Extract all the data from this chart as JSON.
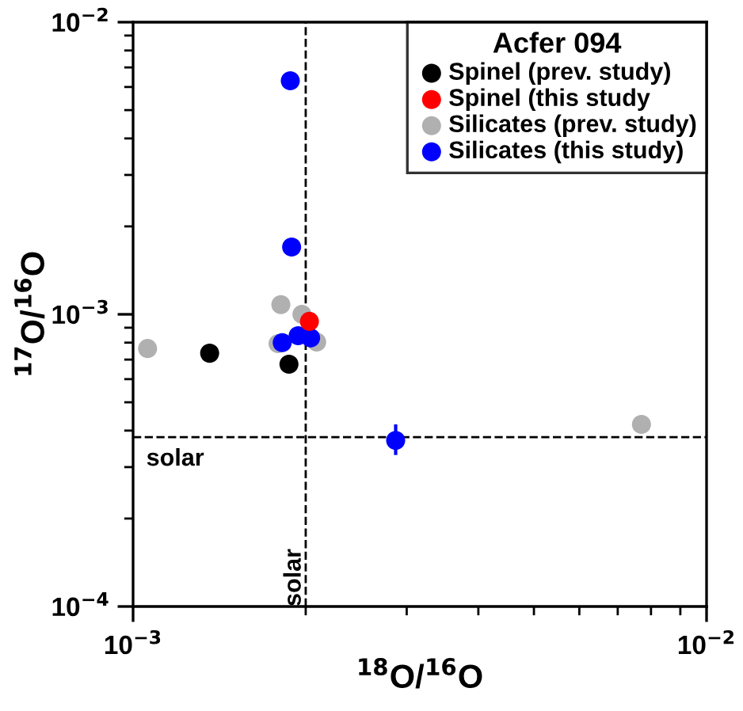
{
  "chart_data": {
    "type": "scatter",
    "xlabel": "$^{18}$O/$^{16}$O",
    "ylabel": "$^{17}$O/$^{16}$O",
    "legend_title": "Acfer 094",
    "log": "xy",
    "xlim": [
      0.001,
      0.01
    ],
    "ylim": [
      0.0001,
      0.01
    ],
    "xticks": [
      {
        "value": 0.001,
        "label": "10$^{−3}$"
      },
      {
        "value": 0.01,
        "label": "10$^{−2}$"
      }
    ],
    "yticks": [
      {
        "value": 0.0001,
        "label": "10$^{−4}$"
      },
      {
        "value": 0.001,
        "label": "10$^{−3}$"
      },
      {
        "value": 0.01,
        "label": "10$^{−2}$"
      }
    ],
    "grid": false,
    "legend": "top right",
    "marker": "circle",
    "ref_lines": [
      {
        "axis": "x",
        "value": 0.002,
        "label": "solar",
        "line_style": "dashed",
        "color": "#000000"
      },
      {
        "axis": "y",
        "value": 0.00038,
        "label": "solar",
        "line_style": "dashed",
        "color": "#000000"
      }
    ],
    "series": [
      {
        "name": "Spinel (prev. study)",
        "color": "#000000",
        "x": [
          0.00136,
          0.00187
        ],
        "values": [
          0.000736,
          0.000675
        ]
      },
      {
        "name": "Spinel (this study",
        "color": "#ff0000",
        "x": [
          0.00203
        ],
        "values": [
          0.000946
        ]
      },
      {
        "name": "Silicates (prev. study)",
        "color": "#b0b0b0",
        "x": [
          0.00106,
          0.00181,
          0.00179,
          0.00197,
          0.00209,
          0.0077
        ],
        "values": [
          0.000764,
          0.00108,
          0.000794,
          0.001,
          0.000804,
          0.00042
        ]
      },
      {
        "name": "Silicates (this study)",
        "color": "#0000ff",
        "x": [
          0.00188,
          0.00189,
          0.00182,
          0.00194,
          0.00204,
          0.00287
        ],
        "values": [
          0.0063,
          0.0017,
          0.0008,
          0.000845,
          0.00083,
          0.00037
        ],
        "errors": [
          null,
          null,
          null,
          null,
          null,
          [
            0.00033,
            0.00042
          ]
        ]
      }
    ]
  }
}
